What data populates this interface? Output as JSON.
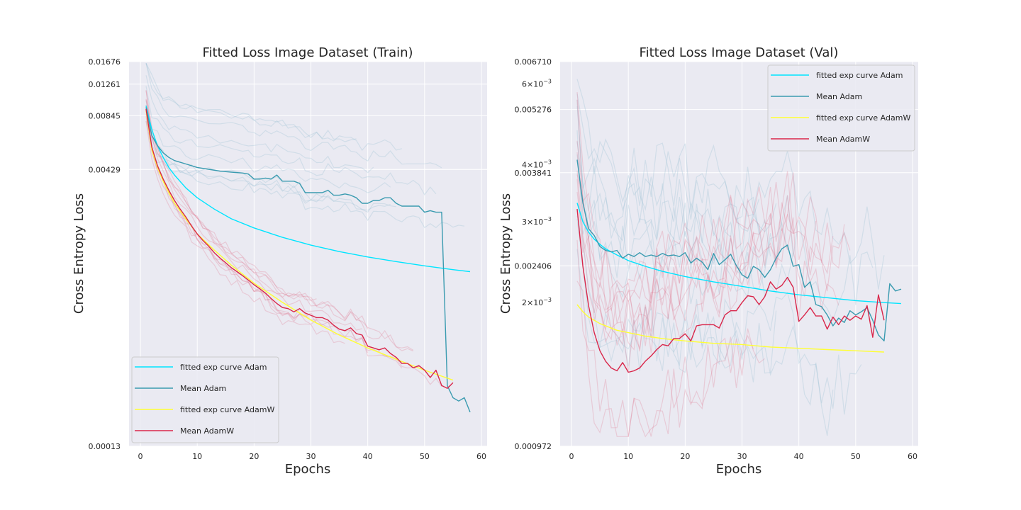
{
  "chart_data": [
    {
      "type": "line",
      "title": "Fitted Loss Image Dataset (Train)",
      "xlabel": "Epochs",
      "ylabel": "Cross Entropy Loss",
      "xlim": [
        -2,
        61
      ],
      "xticks": [
        0,
        10,
        20,
        30,
        40,
        50,
        60
      ],
      "yscale": "log",
      "ylim": [
        0.00013,
        0.01676
      ],
      "yticks": [
        "0.01676",
        "0.01261",
        "0.00845",
        "0.00429",
        "0.00013"
      ],
      "ytick_values": [
        0.01676,
        0.01261,
        0.00845,
        0.00429,
        0.00013
      ],
      "legend_position": "lower-left",
      "grid": true,
      "series": [
        {
          "name": "fitted exp curve Adam",
          "color": "#00e5ff",
          "kind": "fit",
          "x": [
            1,
            2,
            3,
            4,
            5,
            6,
            8,
            10,
            13,
            16,
            20,
            25,
            30,
            35,
            40,
            45,
            50,
            55,
            58
          ],
          "y": [
            0.0096,
            0.0071,
            0.0058,
            0.005,
            0.0044,
            0.004,
            0.0034,
            0.003,
            0.0026,
            0.0023,
            0.00205,
            0.00182,
            0.00165,
            0.00152,
            0.00142,
            0.00134,
            0.00127,
            0.00121,
            0.00118
          ]
        },
        {
          "name": "Mean Adam",
          "color": "#3a9bb0",
          "kind": "mean",
          "x": [
            1,
            2,
            3,
            4,
            5,
            6,
            7,
            8,
            9,
            10,
            12,
            14,
            16,
            18,
            19,
            20,
            21,
            22,
            23,
            24,
            25,
            26,
            27,
            28,
            29,
            30,
            31,
            32,
            33,
            34,
            35,
            36,
            37,
            38,
            39,
            40,
            41,
            42,
            43,
            44,
            45,
            46,
            47,
            48,
            49,
            50,
            51,
            52,
            53,
            54,
            55,
            56,
            57,
            58
          ],
          "y": [
            0.0094,
            0.0066,
            0.0058,
            0.0053,
            0.005,
            0.0048,
            0.0047,
            0.0046,
            0.0045,
            0.0044,
            0.0043,
            0.0042,
            0.00415,
            0.0041,
            0.00405,
            0.0038,
            0.0038,
            0.00385,
            0.0038,
            0.004,
            0.0037,
            0.0037,
            0.0037,
            0.0036,
            0.0032,
            0.0032,
            0.0032,
            0.0032,
            0.0033,
            0.0031,
            0.0031,
            0.00315,
            0.0031,
            0.003,
            0.0028,
            0.0028,
            0.0029,
            0.0029,
            0.003,
            0.003,
            0.0028,
            0.0027,
            0.0027,
            0.0027,
            0.0027,
            0.0025,
            0.00255,
            0.0025,
            0.0025,
            0.00028,
            0.00024,
            0.00023,
            0.00024,
            0.0002
          ]
        },
        {
          "name": "fitted exp curve AdamW",
          "color": "#ffff33",
          "kind": "fit",
          "x": [
            1,
            2,
            3,
            4,
            5,
            6,
            8,
            10,
            13,
            16,
            20,
            25,
            30,
            35,
            40,
            45,
            50,
            55
          ],
          "y": [
            0.009,
            0.0055,
            0.0044,
            0.0037,
            0.0032,
            0.0028,
            0.0023,
            0.0019,
            0.00155,
            0.00128,
            0.00102,
            0.0008,
            0.00064,
            0.00053,
            0.00045,
            0.00039,
            0.00034,
            0.0003
          ]
        },
        {
          "name": "Mean AdamW",
          "color": "#d9264a",
          "kind": "mean",
          "x": [
            1,
            2,
            3,
            4,
            5,
            6,
            7,
            8,
            9,
            10,
            11,
            12,
            13,
            14,
            15,
            16,
            17,
            18,
            19,
            20,
            21,
            22,
            23,
            24,
            25,
            26,
            27,
            28,
            29,
            30,
            31,
            32,
            33,
            34,
            35,
            36,
            37,
            38,
            39,
            40,
            41,
            42,
            43,
            44,
            45,
            46,
            47,
            48,
            49,
            50,
            51,
            52,
            53,
            54,
            55
          ],
          "y": [
            0.0092,
            0.0057,
            0.0045,
            0.0038,
            0.0033,
            0.0029,
            0.0026,
            0.00235,
            0.0021,
            0.0019,
            0.00175,
            0.00163,
            0.0015,
            0.0014,
            0.00132,
            0.00124,
            0.00118,
            0.00112,
            0.00106,
            0.001,
            0.00095,
            0.0009,
            0.00084,
            0.00079,
            0.00075,
            0.00074,
            0.00071,
            0.00074,
            0.0007,
            0.00068,
            0.00066,
            0.00066,
            0.00064,
            0.0006,
            0.00057,
            0.00056,
            0.00058,
            0.00054,
            0.00053,
            0.00046,
            0.00045,
            0.00044,
            0.00045,
            0.00042,
            0.0004,
            0.00037,
            0.00037,
            0.00035,
            0.00036,
            0.00034,
            0.00031,
            0.00034,
            0.00028,
            0.00027,
            0.00029
          ]
        }
      ]
    },
    {
      "type": "line",
      "title": "Fitted Loss Image Dataset (Val)",
      "xlabel": "Epochs",
      "ylabel": "Cross Entropy Loss",
      "xlim": [
        -2,
        61
      ],
      "xticks": [
        0,
        10,
        20,
        30,
        40,
        50,
        60
      ],
      "yscale": "log",
      "ylim": [
        0.000972,
        0.00671
      ],
      "yticks": [
        "0.006710",
        "0.005276",
        "0.003841",
        "0.002406",
        "0.000972"
      ],
      "ytick_values": [
        0.00671,
        0.005276,
        0.003841,
        0.002406,
        0.000972
      ],
      "minor_yticks": [
        {
          "value": 0.006,
          "base": "6×10",
          "exp": "−3"
        },
        {
          "value": 0.004,
          "base": "4×10",
          "exp": "−3"
        },
        {
          "value": 0.003,
          "base": "3×10",
          "exp": "−3"
        },
        {
          "value": 0.002,
          "base": "2×10",
          "exp": "−3"
        }
      ],
      "legend_position": "upper-right",
      "grid": true,
      "series": [
        {
          "name": "fitted exp curve Adam",
          "color": "#00e5ff",
          "kind": "fit",
          "x": [
            1,
            2,
            3,
            4,
            5,
            6,
            8,
            10,
            13,
            16,
            20,
            25,
            30,
            35,
            40,
            45,
            50,
            55,
            58
          ],
          "y": [
            0.0033,
            0.003,
            0.00285,
            0.00275,
            0.00268,
            0.00262,
            0.00254,
            0.00247,
            0.0024,
            0.00234,
            0.00228,
            0.00222,
            0.00217,
            0.00212,
            0.00208,
            0.00205,
            0.00202,
            0.002,
            0.00199
          ]
        },
        {
          "name": "Mean Adam",
          "color": "#3a9bb0",
          "kind": "mean",
          "x": [
            1,
            2,
            3,
            4,
            5,
            6,
            7,
            8,
            9,
            10,
            11,
            12,
            13,
            14,
            15,
            16,
            17,
            18,
            19,
            20,
            21,
            22,
            23,
            24,
            25,
            26,
            27,
            28,
            29,
            30,
            31,
            32,
            33,
            34,
            35,
            36,
            37,
            38,
            39,
            40,
            41,
            42,
            43,
            44,
            45,
            46,
            47,
            48,
            49,
            50,
            51,
            52,
            53,
            54,
            55,
            56,
            57,
            58
          ],
          "y": [
            0.0041,
            0.0033,
            0.0029,
            0.0028,
            0.00265,
            0.0026,
            0.00258,
            0.0026,
            0.0025,
            0.00255,
            0.00252,
            0.00257,
            0.00252,
            0.00254,
            0.00252,
            0.00256,
            0.00253,
            0.00254,
            0.00252,
            0.00257,
            0.00244,
            0.0025,
            0.00245,
            0.00236,
            0.00256,
            0.00242,
            0.00248,
            0.00255,
            0.00241,
            0.0023,
            0.00226,
            0.0024,
            0.00236,
            0.00227,
            0.00236,
            0.0025,
            0.00262,
            0.00267,
            0.0024,
            0.00242,
            0.00216,
            0.00222,
            0.00198,
            0.00196,
            0.00188,
            0.00178,
            0.00185,
            0.00181,
            0.00192,
            0.00188,
            0.00191,
            0.00195,
            0.00183,
            0.0017,
            0.00165,
            0.0022,
            0.00212,
            0.00214
          ]
        },
        {
          "name": "fitted exp curve AdamW",
          "color": "#ffff33",
          "kind": "fit",
          "x": [
            1,
            2,
            3,
            5,
            8,
            10,
            13,
            16,
            20,
            25,
            30,
            35,
            40,
            45,
            50,
            55
          ],
          "y": [
            0.00198,
            0.00191,
            0.00186,
            0.0018,
            0.00174,
            0.00172,
            0.00169,
            0.00167,
            0.00165,
            0.00163,
            0.00162,
            0.0016,
            0.00159,
            0.00158,
            0.00157,
            0.00156
          ]
        },
        {
          "name": "Mean AdamW",
          "color": "#d9264a",
          "kind": "mean",
          "x": [
            1,
            2,
            3,
            4,
            5,
            6,
            7,
            8,
            9,
            10,
            11,
            12,
            13,
            14,
            15,
            16,
            17,
            18,
            19,
            20,
            21,
            22,
            23,
            24,
            25,
            26,
            27,
            28,
            29,
            30,
            31,
            32,
            33,
            34,
            35,
            36,
            37,
            38,
            39,
            40,
            41,
            42,
            43,
            44,
            45,
            46,
            47,
            48,
            49,
            50,
            51,
            52,
            53,
            54,
            55
          ],
          "y": [
            0.0032,
            0.0024,
            0.00197,
            0.00172,
            0.00157,
            0.00149,
            0.00144,
            0.00142,
            0.00148,
            0.00141,
            0.00142,
            0.00144,
            0.00149,
            0.00153,
            0.00158,
            0.00162,
            0.00161,
            0.00167,
            0.00167,
            0.00171,
            0.00165,
            0.00178,
            0.00179,
            0.00179,
            0.00179,
            0.00176,
            0.00188,
            0.00192,
            0.00192,
            0.002,
            0.00207,
            0.00206,
            0.00198,
            0.00206,
            0.00222,
            0.00214,
            0.00218,
            0.00227,
            0.00216,
            0.00182,
            0.00188,
            0.00195,
            0.00187,
            0.00187,
            0.00175,
            0.00186,
            0.00179,
            0.00187,
            0.00183,
            0.00187,
            0.00184,
            0.00197,
            0.00168,
            0.00208,
            0.00183
          ]
        }
      ]
    }
  ]
}
